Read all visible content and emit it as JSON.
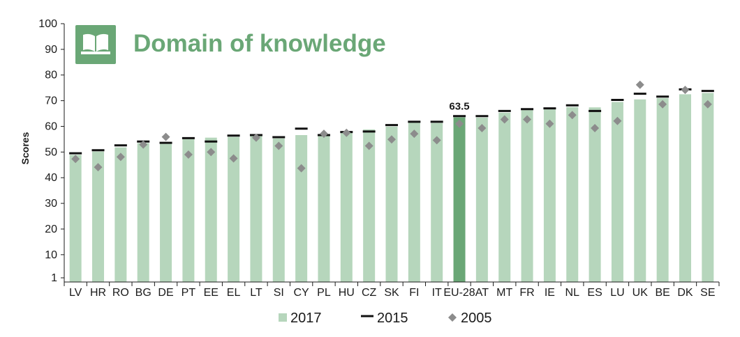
{
  "chart_data": {
    "type": "bar",
    "title": "Domain of knowledge",
    "title_icon": "open-book-icon",
    "ylabel": "Scores",
    "ylim": [
      1,
      100
    ],
    "yticks": [
      1,
      10,
      20,
      30,
      40,
      50,
      60,
      70,
      80,
      90,
      100
    ],
    "grid": false,
    "legend_position": "bottom-center",
    "categories": [
      "LV",
      "HR",
      "RO",
      "BG",
      "DE",
      "PT",
      "EE",
      "EL",
      "LT",
      "SI",
      "CY",
      "PL",
      "HU",
      "CZ",
      "SK",
      "FI",
      "IT",
      "EU-28",
      "AT",
      "MT",
      "FR",
      "IE",
      "NL",
      "ES",
      "LU",
      "UK",
      "BE",
      "DK",
      "SE"
    ],
    "highlight_category": "EU-28",
    "highlight_label": "63.5",
    "series": [
      {
        "name": "2017",
        "kind": "bar",
        "values": [
          48.9,
          50.2,
          51.8,
          53.5,
          53.2,
          55.0,
          55.6,
          55.9,
          56.3,
          55.3,
          56.6,
          56.5,
          57.6,
          58.8,
          59.9,
          61.5,
          61.3,
          63.5,
          63.4,
          65.3,
          66.3,
          66.6,
          67.5,
          67.4,
          69.5,
          70.5,
          71.0,
          72.5,
          73.0
        ]
      },
      {
        "name": "2015",
        "kind": "dash",
        "values": [
          49.5,
          50.7,
          52.6,
          54.1,
          53.6,
          55.4,
          54.1,
          56.4,
          56.6,
          55.8,
          59.1,
          56.6,
          57.8,
          58.0,
          60.5,
          61.8,
          61.8,
          64.0,
          64.0,
          66.0,
          66.7,
          67.0,
          68.2,
          66.0,
          70.3,
          72.7,
          71.6,
          74.4,
          73.8
        ]
      },
      {
        "name": "2005",
        "kind": "diamond",
        "values": [
          47.3,
          44.1,
          48.1,
          52.9,
          55.9,
          49.0,
          50.0,
          47.5,
          55.6,
          52.4,
          43.7,
          57.1,
          57.5,
          52.4,
          54.9,
          57.1,
          54.6,
          61.0,
          59.3,
          62.7,
          62.7,
          61.0,
          64.4,
          59.3,
          62.1,
          76.2,
          68.6,
          74.2,
          68.6
        ]
      }
    ],
    "colors": {
      "bar_2017": "#b6d6bc",
      "bar_highlight": "#6aa776",
      "dash_2015": "#111111",
      "diamond_2005": "#8c8c8c",
      "title": "#6aa776",
      "icon_bg": "#6aa776",
      "axis": "#1a1a1a"
    }
  }
}
